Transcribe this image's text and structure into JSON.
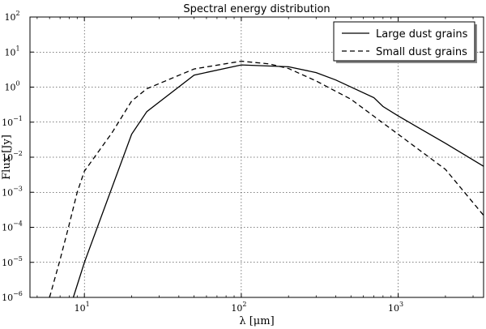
{
  "chart_data": {
    "type": "line",
    "title": "Spectral energy distribution",
    "xlabel": "λ [μm]",
    "ylabel": "Flux [Jy]",
    "xscale": "log",
    "yscale": "log",
    "xlim": [
      4.5,
      3500
    ],
    "ylim": [
      1e-06,
      100
    ],
    "grid": true,
    "legend_position": "top-right",
    "x_ticks": [
      {
        "value": 10,
        "base": "10",
        "exp": "1"
      },
      {
        "value": 100,
        "base": "10",
        "exp": "2"
      },
      {
        "value": 1000,
        "base": "10",
        "exp": "3"
      }
    ],
    "y_ticks": [
      {
        "value": 1e-06,
        "base": "10",
        "exp": "−6"
      },
      {
        "value": 1e-05,
        "base": "10",
        "exp": "−5"
      },
      {
        "value": 0.0001,
        "base": "10",
        "exp": "−4"
      },
      {
        "value": 0.001,
        "base": "10",
        "exp": "−3"
      },
      {
        "value": 0.01,
        "base": "10",
        "exp": "−2"
      },
      {
        "value": 0.1,
        "base": "10",
        "exp": "−1"
      },
      {
        "value": 1,
        "base": "10",
        "exp": "0"
      },
      {
        "value": 10,
        "base": "10",
        "exp": "1"
      },
      {
        "value": 100,
        "base": "10",
        "exp": "2"
      }
    ],
    "series": [
      {
        "name": "Large dust grains",
        "style": "solid",
        "x": [
          8.5,
          10,
          20,
          25,
          50,
          100,
          200,
          300,
          400,
          700,
          800,
          1000,
          2000,
          3500
        ],
        "y": [
          1e-06,
          1e-05,
          0.045,
          0.2,
          2.2,
          4.3,
          3.8,
          2.6,
          1.6,
          0.5,
          0.28,
          0.15,
          0.025,
          0.0055
        ]
      },
      {
        "name": "Small dust grains",
        "style": "dashed",
        "x": [
          6,
          7,
          8,
          9,
          10,
          15,
          20,
          25,
          50,
          100,
          150,
          200,
          300,
          500,
          1000,
          2000,
          3500
        ],
        "y": [
          1e-06,
          1.2e-05,
          0.00012,
          0.001,
          0.004,
          0.05,
          0.4,
          0.9,
          3.3,
          5.5,
          4.6,
          3.4,
          1.5,
          0.45,
          0.045,
          0.0045,
          0.00022
        ]
      }
    ]
  }
}
